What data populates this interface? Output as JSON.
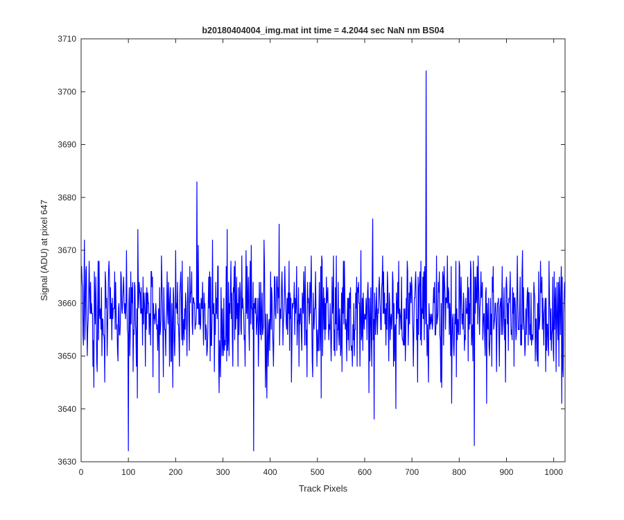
{
  "chart_data": {
    "type": "line",
    "title": "b20180404004_img.mat int time = 4.2044 sec  NaN nm BS04",
    "xlabel": "Track Pixels",
    "ylabel": "Signal (ADU) at pixel 647",
    "xlim": [
      0,
      1024
    ],
    "ylim": [
      3630,
      3710
    ],
    "xticks": [
      0,
      100,
      200,
      300,
      400,
      500,
      600,
      700,
      800,
      900,
      1000
    ],
    "yticks": [
      3630,
      3640,
      3650,
      3660,
      3670,
      3680,
      3690,
      3700,
      3710
    ],
    "grid": false,
    "legend": "none",
    "series": [
      {
        "color": "#0000ff",
        "x_start": 1,
        "x_step": 1,
        "points": 1024,
        "mean": 3658,
        "noise_sd": 6,
        "highlights": [
          {
            "x": 100,
            "y": 3632
          },
          {
            "x": 245,
            "y": 3683
          },
          {
            "x": 365,
            "y": 3632
          },
          {
            "x": 730,
            "y": 3704
          },
          {
            "x": 832,
            "y": 3633
          }
        ]
      }
    ]
  },
  "colors": {
    "line": "#0000ff",
    "axis": "#262626",
    "background": "#ffffff"
  }
}
